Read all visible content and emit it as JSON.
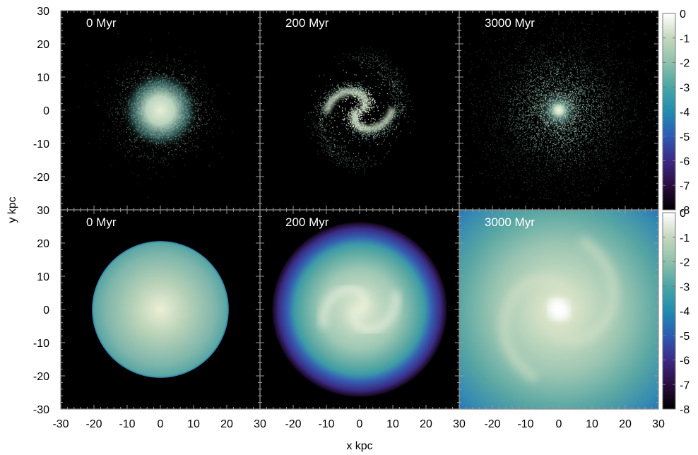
{
  "chart_data": {
    "type": "heatmap",
    "xlabel": "x kpc",
    "ylabel": "y kpc",
    "x_ticks": [
      "-30",
      "-20",
      "-10",
      "0",
      "10",
      "20",
      "30"
    ],
    "x_ticks_first_panel": [
      "-30",
      "-20",
      "-10",
      "0",
      "10",
      "20"
    ],
    "x_ticks_other_panels": [
      "30",
      "-20",
      "-10",
      "0",
      "10",
      "20"
    ],
    "x_ticks_last_panel": [
      "30",
      "-20",
      "-10",
      "0",
      "10",
      "20",
      "30"
    ],
    "y_ticks_top": [
      "30",
      "20",
      "10",
      "0",
      "-10",
      "-20"
    ],
    "y_ticks_bottom": [
      "30",
      "20",
      "10",
      "0",
      "-10",
      "-20",
      "-30"
    ],
    "xlim": [
      -30,
      30
    ],
    "ylim": [
      -30,
      30
    ],
    "colorbar_ticks": [
      "0",
      "-1",
      "-2",
      "-3",
      "-4",
      "-5",
      "-6",
      "-7",
      "-8"
    ],
    "colorbar_range": [
      -8,
      0
    ],
    "colormap": [
      "#000000",
      "#2a0e3e",
      "#3d2a86",
      "#2c5bb5",
      "#1f8cb0",
      "#4aa6a4",
      "#8ec0ac",
      "#c6d8bd",
      "#ffffff"
    ],
    "panels": [
      {
        "row": 0,
        "col": 0,
        "time": "0 Myr",
        "kind": "particles",
        "morphology": "disk"
      },
      {
        "row": 0,
        "col": 1,
        "time": "200 Myr",
        "kind": "particles",
        "morphology": "spiral"
      },
      {
        "row": 0,
        "col": 2,
        "time": "3000 Myr",
        "kind": "particles",
        "morphology": "dispersed"
      },
      {
        "row": 1,
        "col": 0,
        "time": "0 Myr",
        "kind": "grid",
        "morphology": "disk"
      },
      {
        "row": 1,
        "col": 1,
        "time": "200 Myr",
        "kind": "grid",
        "morphology": "spiral"
      },
      {
        "row": 1,
        "col": 2,
        "time": "3000 Myr",
        "kind": "grid",
        "morphology": "dispersed"
      }
    ]
  }
}
